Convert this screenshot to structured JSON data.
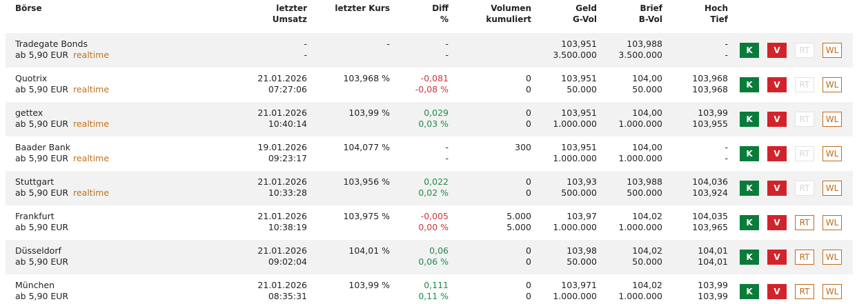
{
  "header": {
    "columns": [
      [
        "Börse"
      ],
      [
        "letzter",
        "Umsatz"
      ],
      [
        "letzter Kurs"
      ],
      [
        "Diff",
        "%"
      ],
      [
        "Volumen",
        "kumuliert"
      ],
      [
        "Geld",
        "G-Vol"
      ],
      [
        "Brief",
        "B-Vol"
      ],
      [
        "Hoch",
        "Tief"
      ]
    ]
  },
  "buttons": [
    "K",
    "V",
    "RT",
    "WL"
  ],
  "table": {
    "rows": [
      {
        "cells": [
          [
            "Tradegate Bonds",
            "ab 5,90 EUR"
          ],
          [
            "-",
            "-"
          ],
          [
            "-"
          ],
          [
            "-",
            "-"
          ],
          [
            null,
            null
          ],
          [
            "103,951",
            "3.500.000"
          ],
          [
            "103,988",
            "3.500.000"
          ],
          [
            "-",
            "-"
          ]
        ],
        "realtime": "realtime",
        "trend": "none",
        "rt_active": false
      },
      {
        "cells": [
          [
            "Quotrix",
            "ab 5,90 EUR"
          ],
          [
            "21.01.2026",
            "07:27:06"
          ],
          [
            "103,968 %"
          ],
          [
            "-0,081",
            "-0,08 %"
          ],
          [
            "0",
            "0"
          ],
          [
            "103,951",
            "50.000"
          ],
          [
            "104,00",
            "50.000"
          ],
          [
            "103,968",
            "103,968"
          ]
        ],
        "realtime": "realtime",
        "trend": "down",
        "rt_active": false
      },
      {
        "cells": [
          [
            "gettex",
            "ab 5,90 EUR"
          ],
          [
            "21.01.2026",
            "10:40:14"
          ],
          [
            "103,99 %"
          ],
          [
            "0,029",
            "0,03 %"
          ],
          [
            "0",
            "0"
          ],
          [
            "103,951",
            "1.000.000"
          ],
          [
            "104,00",
            "1.000.000"
          ],
          [
            "103,99",
            "103,955"
          ]
        ],
        "realtime": "realtime",
        "trend": "up",
        "rt_active": false
      },
      {
        "cells": [
          [
            "Baader Bank",
            "ab 5,90 EUR"
          ],
          [
            "19.01.2026",
            "09:23:17"
          ],
          [
            "104,077 %"
          ],
          [
            "-",
            "-"
          ],
          [
            "300",
            null
          ],
          [
            "103,951",
            "1.000.000"
          ],
          [
            "104,00",
            "1.000.000"
          ],
          [
            "-",
            "-"
          ]
        ],
        "realtime": "realtime",
        "trend": "none",
        "rt_active": false
      },
      {
        "cells": [
          [
            "Stuttgart",
            "ab 5,90 EUR"
          ],
          [
            "21.01.2026",
            "10:33:28"
          ],
          [
            "103,956 %"
          ],
          [
            "0,022",
            "0,02 %"
          ],
          [
            "0",
            "0"
          ],
          [
            "103,93",
            "500.000"
          ],
          [
            "103,988",
            "500.000"
          ],
          [
            "104,036",
            "103,924"
          ]
        ],
        "realtime": "realtime",
        "trend": "up",
        "rt_active": false
      },
      {
        "cells": [
          [
            "Frankfurt",
            "ab 5,90 EUR"
          ],
          [
            "21.01.2026",
            "10:38:19"
          ],
          [
            "103,975 %"
          ],
          [
            "-0,005",
            "0,00 %"
          ],
          [
            "5.000",
            "5.000"
          ],
          [
            "103,97",
            "1.000.000"
          ],
          [
            "104,02",
            "1.000.000"
          ],
          [
            "104,035",
            "103,965"
          ]
        ],
        "trend": "down",
        "rt_active": true
      },
      {
        "cells": [
          [
            "Düsseldorf",
            "ab 5,90 EUR"
          ],
          [
            "21.01.2026",
            "09:02:04"
          ],
          [
            "104,01 %"
          ],
          [
            "0,06",
            "0,06 %"
          ],
          [
            "0",
            "0"
          ],
          [
            "103,98",
            "50.000"
          ],
          [
            "104,02",
            "50.000"
          ],
          [
            "104,01",
            "104,01"
          ]
        ],
        "trend": "up",
        "rt_active": true
      },
      {
        "cells": [
          [
            "München",
            "ab 5,90 EUR"
          ],
          [
            "21.01.2026",
            "08:35:31"
          ],
          [
            "103,99 %"
          ],
          [
            "0,111",
            "0,11 %"
          ],
          [
            "0",
            "0"
          ],
          [
            "103,971",
            "1.000.000"
          ],
          [
            "104,02",
            "1.000.000"
          ],
          [
            "103,99",
            "103,99"
          ]
        ],
        "trend": "up",
        "rt_active": true
      }
    ]
  }
}
